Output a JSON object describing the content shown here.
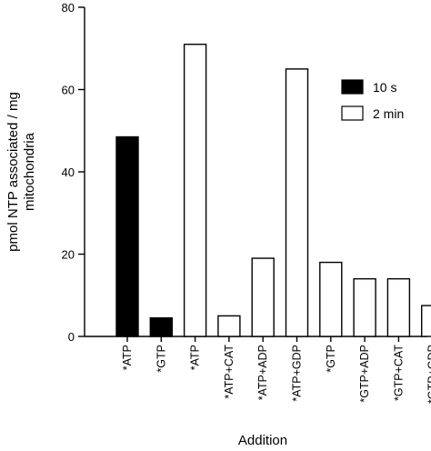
{
  "chart_data": {
    "type": "bar",
    "title": "",
    "xlabel": "Addition",
    "ylabel_lines": [
      "pmol NTP associated / mg",
      "mitochondria"
    ],
    "ylim": [
      0,
      80
    ],
    "yticks": [
      0,
      20,
      40,
      60,
      80
    ],
    "grid": false,
    "legend_position": "top-right",
    "categories": [
      "*ATP",
      "*GTP",
      "*ATP",
      "*ATP+CAT",
      "*ATP+ADP",
      "*ATP+GDP",
      "*GTP",
      "*GTP+ADP",
      "*GTP+CAT",
      "*GTP+GDP"
    ],
    "values": [
      48.5,
      4.5,
      71,
      5,
      19,
      65,
      18,
      14,
      14,
      7.5
    ],
    "bar_series": [
      0,
      0,
      1,
      1,
      1,
      1,
      1,
      1,
      1,
      1
    ],
    "series": [
      {
        "name": "10 s",
        "color": "#000000"
      },
      {
        "name": "2 min",
        "color": "#ffffff"
      }
    ]
  }
}
